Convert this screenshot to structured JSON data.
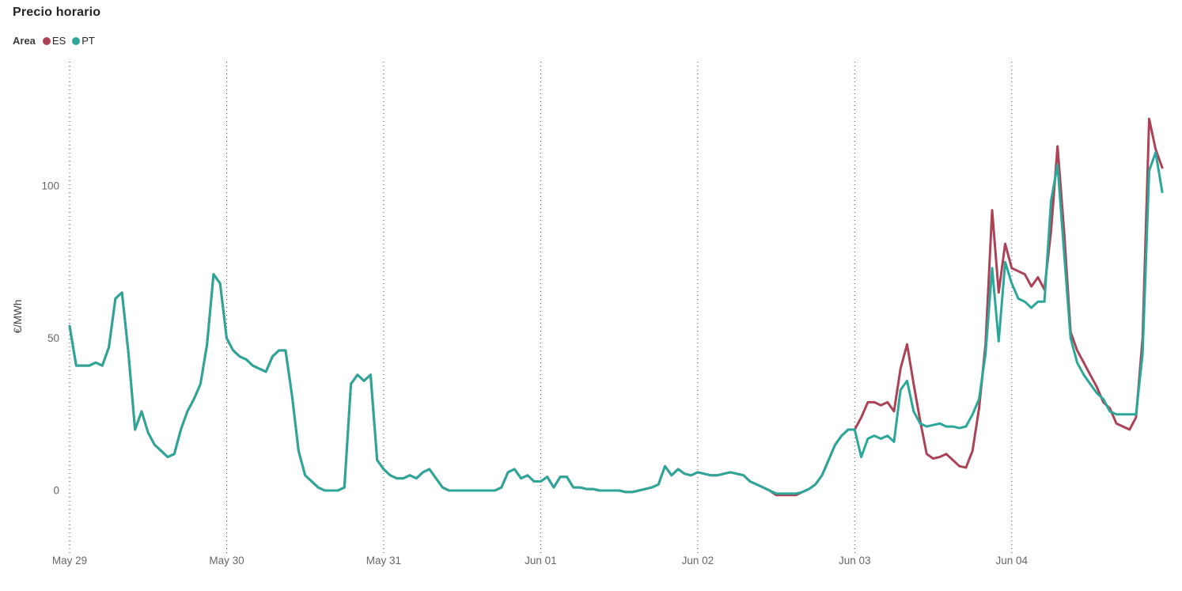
{
  "chart": {
    "title": "Precio horario",
    "legend": {
      "title": "Area",
      "items": [
        {
          "label": "ES",
          "color": "#ab4255"
        },
        {
          "label": "PT",
          "color": "#2ba79a"
        }
      ]
    },
    "y_axis_title": "€/MWh"
  },
  "chart_data": {
    "type": "line",
    "title": "Precio horario",
    "xlabel": "",
    "ylabel": "€/MWh",
    "x_unit": "hour",
    "x_start": "May 29 00:00",
    "points_per_day": 24,
    "day_labels": [
      "May 29",
      "May 30",
      "May 31",
      "Jun 01",
      "Jun 02",
      "Jun 03",
      "Jun 04"
    ],
    "y_ticks": [
      0,
      50,
      100
    ],
    "ylim": [
      -21,
      141
    ],
    "grid": "vertical-dotted-day-lines",
    "legend_position": "top-left",
    "series": [
      {
        "name": "ES",
        "color": "#ab4255",
        "values": [
          54,
          41,
          41,
          41,
          42,
          41,
          47,
          63,
          65,
          45,
          20,
          26,
          19,
          15,
          13,
          11,
          12,
          20,
          26,
          30,
          35,
          48,
          71,
          68,
          50,
          46,
          44,
          43,
          41,
          40,
          39,
          44,
          46,
          46,
          31,
          13,
          5,
          3,
          1,
          0,
          0,
          0,
          1,
          35,
          38,
          36,
          38,
          10,
          7,
          5,
          4,
          4,
          5,
          4,
          6,
          7,
          4,
          1,
          0,
          0,
          0,
          0,
          0,
          0,
          0,
          0,
          1,
          6,
          7,
          4,
          5,
          3,
          3,
          4.5,
          1,
          4.5,
          4.5,
          1,
          1,
          0.5,
          0.5,
          0,
          0,
          0,
          0,
          -0.5,
          -0.5,
          0,
          0.5,
          1,
          2,
          8,
          5,
          7,
          5.5,
          5,
          6,
          5.5,
          5,
          5,
          5.5,
          6,
          5.5,
          5,
          3,
          2,
          1,
          0,
          -1.5,
          -1.5,
          -1.5,
          -1.5,
          -0.5,
          0.5,
          2,
          5,
          10,
          15,
          18,
          20,
          20,
          24,
          29,
          29,
          28,
          29,
          26,
          40,
          48,
          35,
          23,
          12,
          10.5,
          11,
          12,
          10,
          8,
          7.5,
          13,
          27,
          48,
          92,
          65,
          81,
          73,
          72,
          71,
          67,
          70,
          66,
          85,
          113,
          85,
          52,
          46,
          42,
          38,
          34,
          29,
          27,
          22,
          21,
          20,
          24,
          50,
          122,
          112,
          106
        ]
      },
      {
        "name": "PT",
        "color": "#2ba79a",
        "values": [
          54,
          41,
          41,
          41,
          42,
          41,
          47,
          63,
          65,
          45,
          20,
          26,
          19,
          15,
          13,
          11,
          12,
          20,
          26,
          30,
          35,
          48,
          71,
          68,
          50,
          46,
          44,
          43,
          41,
          40,
          39,
          44,
          46,
          46,
          31,
          13,
          5,
          3,
          1,
          0,
          0,
          0,
          1,
          35,
          38,
          36,
          38,
          10,
          7,
          5,
          4,
          4,
          5,
          4,
          6,
          7,
          4,
          1,
          0,
          0,
          0,
          0,
          0,
          0,
          0,
          0,
          1,
          6,
          7,
          4,
          5,
          3,
          3,
          4.5,
          1,
          4.5,
          4.5,
          1,
          1,
          0.5,
          0.5,
          0,
          0,
          0,
          0,
          -0.5,
          -0.5,
          0,
          0.5,
          1,
          2,
          8,
          5,
          7,
          5.5,
          5,
          6,
          5.5,
          5,
          5,
          5.5,
          6,
          5.5,
          5,
          3,
          2,
          1,
          0,
          -1,
          -1,
          -1,
          -1,
          -0.5,
          0.5,
          2,
          5,
          10,
          15,
          18,
          20,
          20,
          11,
          17,
          18,
          17,
          18,
          16,
          33,
          36,
          26,
          22,
          21,
          21.5,
          22,
          21,
          21,
          20.5,
          21,
          25,
          30,
          45,
          73,
          49,
          75,
          68,
          63,
          62,
          60,
          62,
          62,
          95,
          107,
          78,
          50,
          42,
          38,
          35,
          32,
          30,
          26,
          25,
          25,
          25,
          25,
          45,
          105,
          111,
          98
        ]
      }
    ]
  }
}
